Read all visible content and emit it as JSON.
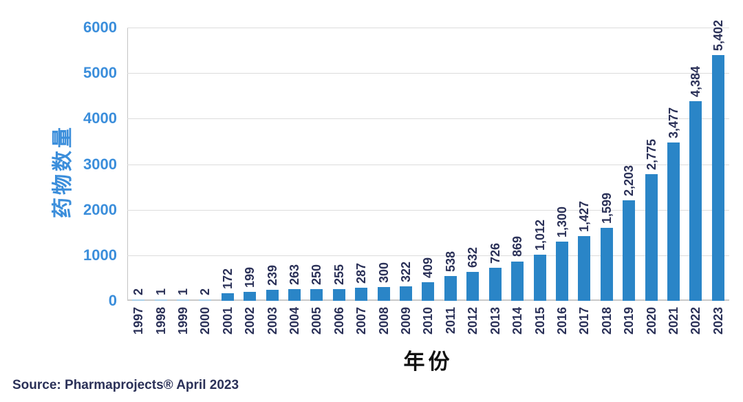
{
  "chart_data": {
    "type": "bar",
    "title": "",
    "xlabel": "年份",
    "ylabel": "药物数量",
    "categories": [
      "1997",
      "1998",
      "1999",
      "2000",
      "2001",
      "2002",
      "2003",
      "2004",
      "2005",
      "2006",
      "2007",
      "2008",
      "2009",
      "2010",
      "2011",
      "2012",
      "2013",
      "2014",
      "2015",
      "2016",
      "2017",
      "2018",
      "2019",
      "2020",
      "2021",
      "2022",
      "2023"
    ],
    "values": [
      2,
      1,
      1,
      2,
      172,
      199,
      239,
      263,
      250,
      255,
      287,
      300,
      322,
      409,
      538,
      632,
      726,
      869,
      1012,
      1300,
      1427,
      1599,
      2203,
      2775,
      3477,
      4384,
      5402
    ],
    "value_labels": [
      "2",
      "1",
      "1",
      "2",
      "172",
      "199",
      "239",
      "263",
      "250",
      "255",
      "287",
      "300",
      "322",
      "409",
      "538",
      "632",
      "726",
      "869",
      "1,012",
      "1,300",
      "1,427",
      "1,599",
      "2,203",
      "2,775",
      "3,477",
      "4,384",
      "5,402"
    ],
    "y_ticks": [
      0,
      1000,
      2000,
      3000,
      4000,
      5000,
      6000
    ],
    "ylim": [
      0,
      6000
    ],
    "grid": true,
    "legend": false,
    "bar_label_rotation": -90,
    "x_tick_rotation": -90
  },
  "source_note": "Source: Pharmaprojects® April 2023",
  "colors": {
    "bar": "#2a85c7",
    "bar_tiny": "#a9cfe9",
    "axis_text": "#3b8edb",
    "label_text": "#2b3158",
    "xlabel_text": "#111111",
    "gridline": "#dcdcdc",
    "baseline": "#c9c9c9"
  }
}
